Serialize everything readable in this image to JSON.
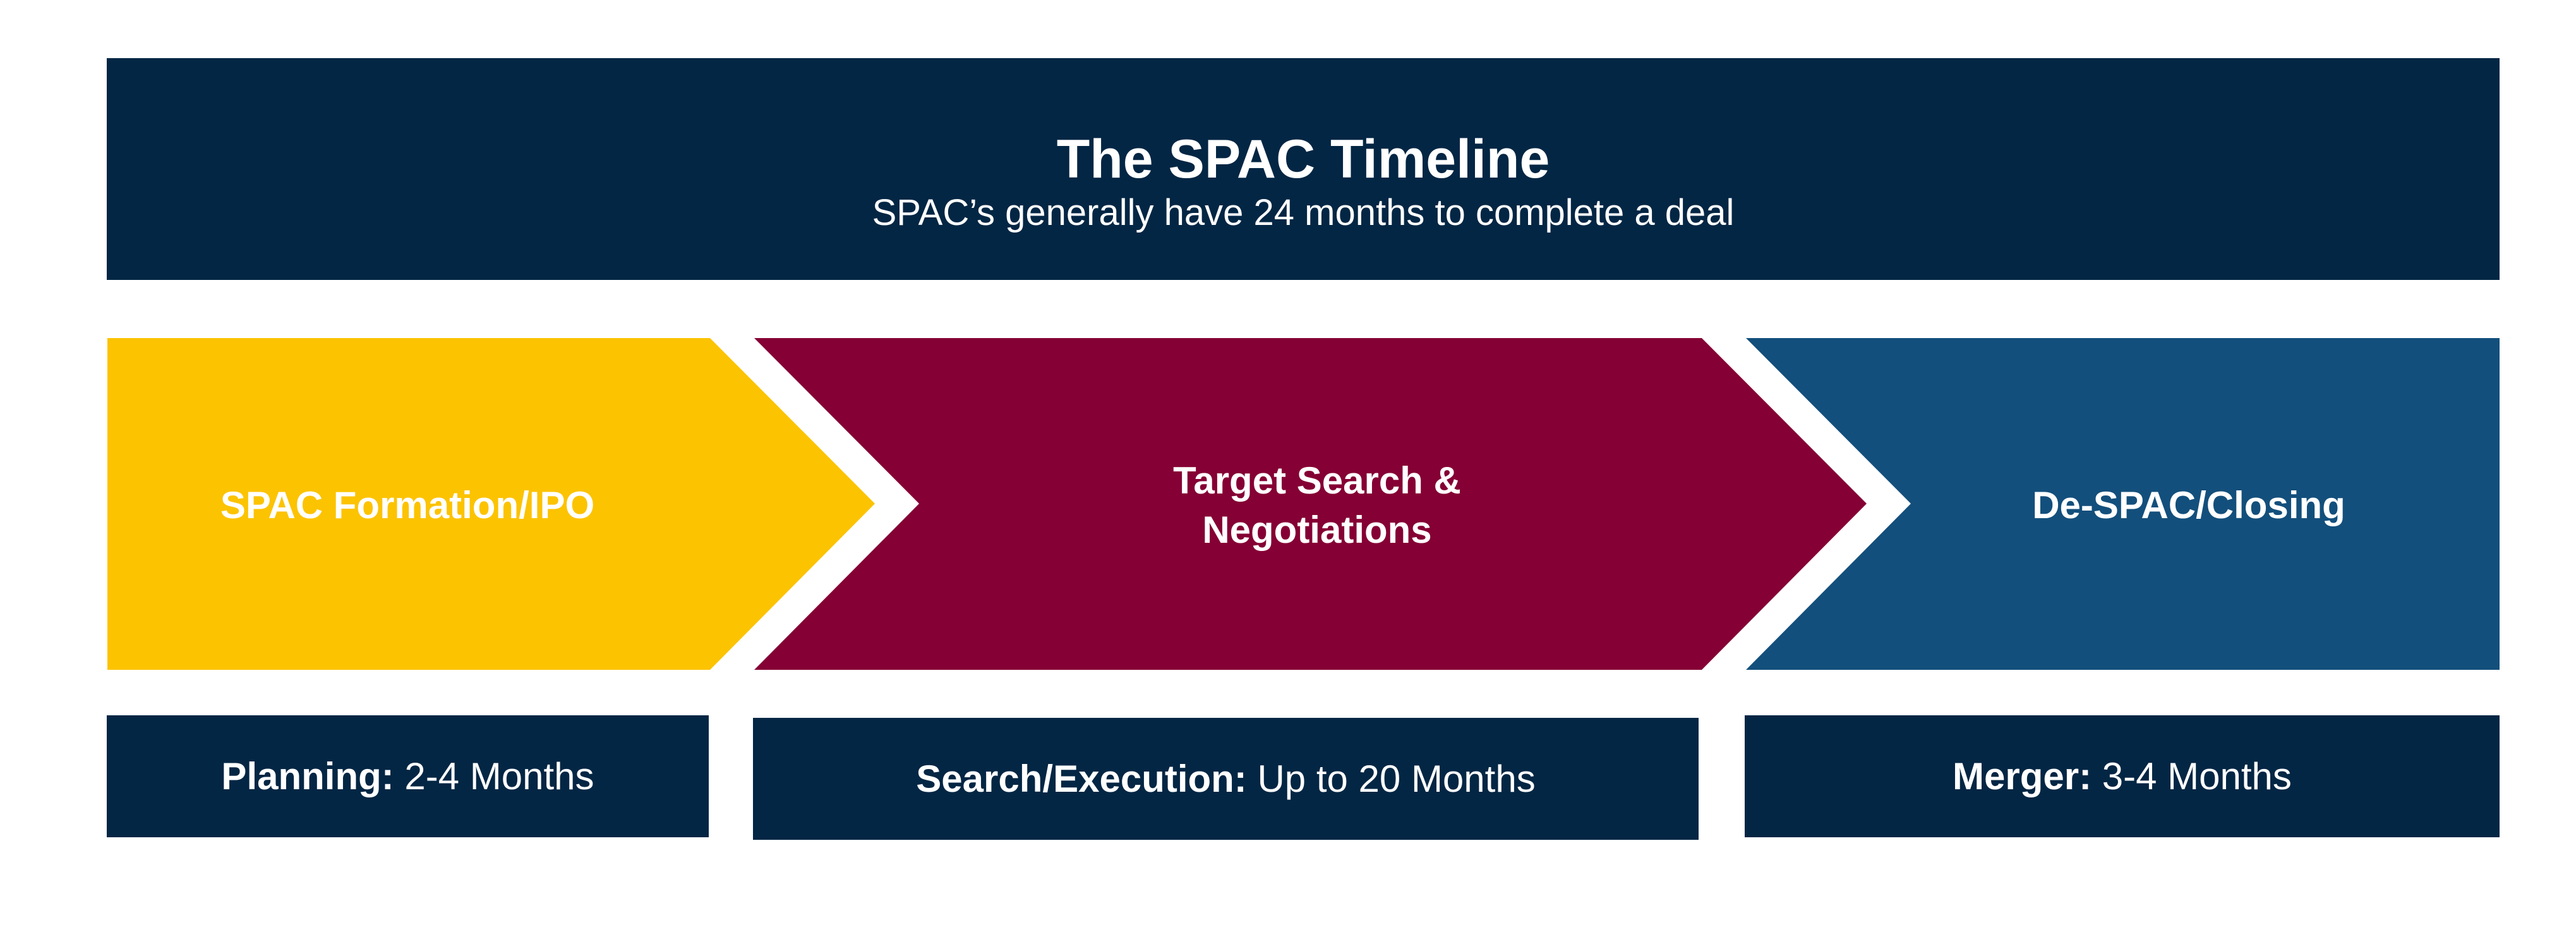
{
  "header": {
    "title": "The SPAC Timeline",
    "subtitle": "SPAC’s generally have 24 months to complete a deal"
  },
  "steps": [
    {
      "label": "SPAC Formation/IPO",
      "color": "#FCC300"
    },
    {
      "label_line1": "Target Search &",
      "label_line2": "Negotiations",
      "color": "#850034"
    },
    {
      "label": "De-SPAC/Closing",
      "color": "#134F7C"
    }
  ],
  "durations": [
    {
      "bold": "Planning:",
      "text": "2-4 Months"
    },
    {
      "bold": "Search/Execution:",
      "text": "Up to 20 Months"
    },
    {
      "bold": "Merger:",
      "text": "3-4 Months"
    }
  ],
  "colors": {
    "navy": "#032644",
    "yellow": "#FCC300",
    "maroon": "#850034",
    "blue": "#134F7C"
  }
}
